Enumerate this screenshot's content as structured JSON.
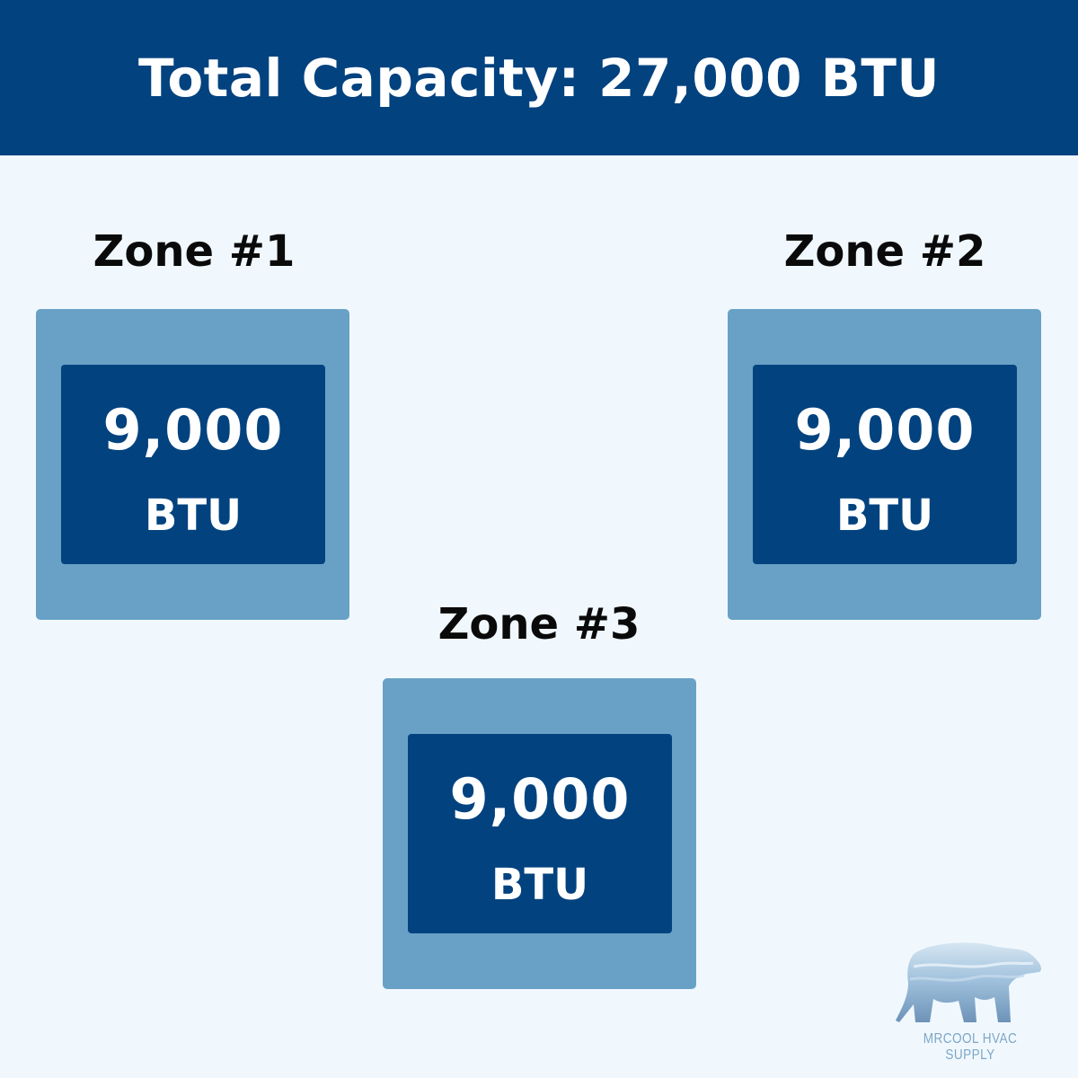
{
  "header": {
    "title": "Total Capacity: 27,000 BTU"
  },
  "zones": [
    {
      "label": "Zone #1",
      "value": "9,000",
      "unit": "BTU"
    },
    {
      "label": "Zone #2",
      "value": "9,000",
      "unit": "BTU"
    },
    {
      "label": "Zone #3",
      "value": "9,000",
      "unit": "BTU"
    }
  ],
  "logo": {
    "text": "MRCOOL HVAC SUPPLY",
    "icon": "polar-bear-icon"
  },
  "colors": {
    "header": "#02427F",
    "outer_box": "#69A1C6",
    "inner_box": "#02427F",
    "background": "#F0F8FE"
  }
}
